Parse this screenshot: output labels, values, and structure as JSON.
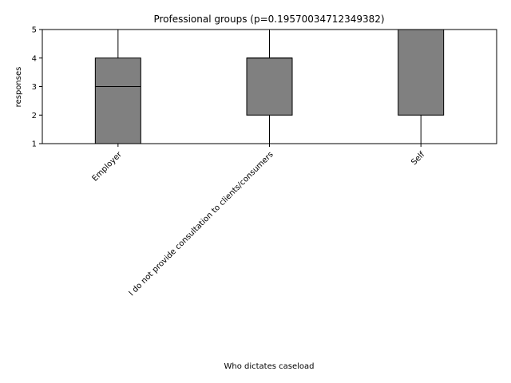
{
  "chart_data": {
    "type": "box",
    "title": "Professional groups (p=0.19570034712349382)",
    "xlabel": "Who dictates caseload",
    "ylabel": "responses",
    "ylim": [
      1,
      5
    ],
    "yticks": [
      "1",
      "2",
      "3",
      "4",
      "5"
    ],
    "grid": false,
    "legend": "none",
    "categories": [
      "Employer",
      "I do not provide consultation to clients/consumers",
      "Self"
    ],
    "boxes": [
      {
        "category": "Employer",
        "whisker_low": 1,
        "q1": 1,
        "median": 3,
        "q3": 4,
        "whisker_high": 5
      },
      {
        "category": "I do not provide consultation to clients/consumers",
        "whisker_low": 1,
        "q1": 2,
        "median": 4,
        "q3": 4,
        "whisker_high": 5
      },
      {
        "category": "Self",
        "whisker_low": 1,
        "q1": 2,
        "median": 5,
        "q3": 5,
        "whisker_high": 5
      }
    ],
    "box_color": "#808080",
    "line_color": "#000000"
  }
}
